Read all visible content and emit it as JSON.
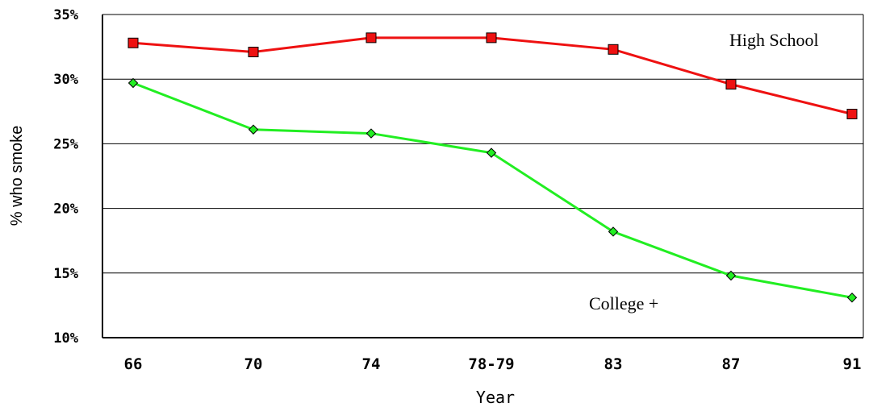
{
  "chart_data": {
    "type": "line",
    "title": "",
    "xlabel": "Year",
    "ylabel": "% who smoke",
    "categories": [
      "66",
      "70",
      "74",
      "78-79",
      "83",
      "87",
      "91"
    ],
    "ylim": [
      10,
      35
    ],
    "yticks": [
      10,
      15,
      20,
      25,
      30,
      35
    ],
    "ytick_labels": [
      "10%",
      "15%",
      "20%",
      "25%",
      "30%",
      "35%"
    ],
    "grid": "horizontal",
    "legend": "none",
    "series": [
      {
        "name": "High School",
        "color": "#ee1111",
        "marker": "square",
        "values": [
          32.8,
          32.1,
          33.2,
          33.2,
          32.3,
          29.6,
          27.3
        ]
      },
      {
        "name": "College +",
        "color": "#22ee22",
        "marker": "diamond",
        "values": [
          29.7,
          26.1,
          25.8,
          24.3,
          18.2,
          14.8,
          13.1
        ]
      }
    ],
    "annotations": [
      "High School",
      "College +"
    ]
  }
}
